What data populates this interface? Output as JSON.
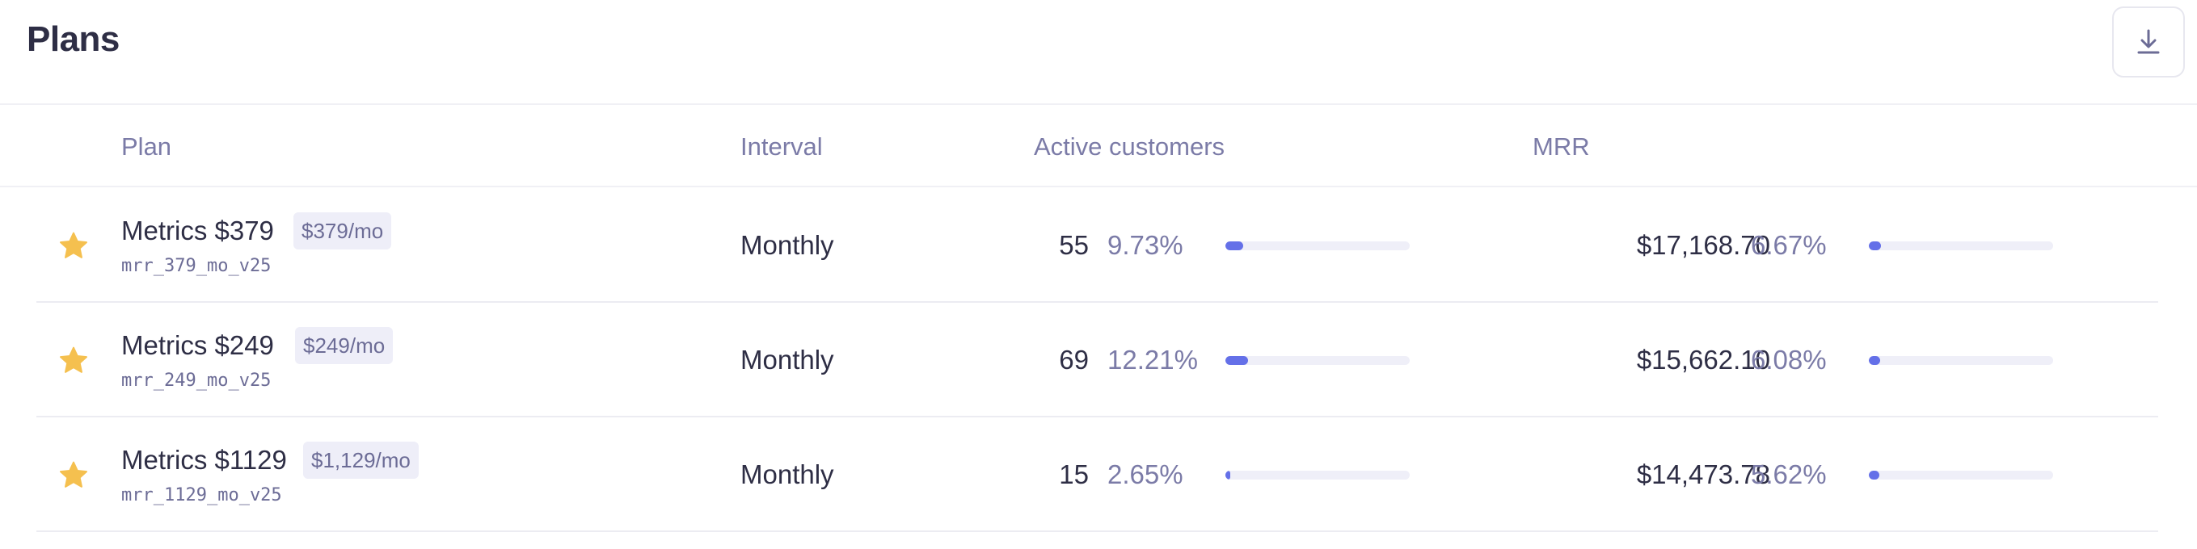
{
  "header": {
    "title": "Plans",
    "download_icon": "download-icon"
  },
  "columns": {
    "plan": "Plan",
    "interval": "Interval",
    "active_customers": "Active customers",
    "mrr": "MRR"
  },
  "colors": {
    "accent": "#6470e8",
    "star": "#f5c04f",
    "muted_text": "#7b7ba7"
  },
  "rows": [
    {
      "name": "Metrics $379",
      "price_badge": "$379/mo",
      "code": "mrr_379_mo_v25",
      "interval": "Monthly",
      "customers": "55",
      "customers_pct": "9.73%",
      "customers_fraction": 0.0973,
      "mrr": "$17,168.70",
      "mrr_pct": "6.67%",
      "mrr_fraction": 0.0667
    },
    {
      "name": "Metrics $249",
      "price_badge": "$249/mo",
      "code": "mrr_249_mo_v25",
      "interval": "Monthly",
      "customers": "69",
      "customers_pct": "12.21%",
      "customers_fraction": 0.1221,
      "mrr": "$15,662.10",
      "mrr_pct": "6.08%",
      "mrr_fraction": 0.0608
    },
    {
      "name": "Metrics $1129",
      "price_badge": "$1,129/mo",
      "code": "mrr_1129_mo_v25",
      "interval": "Monthly",
      "customers": "15",
      "customers_pct": "2.65%",
      "customers_fraction": 0.0265,
      "mrr": "$14,473.78",
      "mrr_pct": "5.62%",
      "mrr_fraction": 0.0562
    }
  ]
}
